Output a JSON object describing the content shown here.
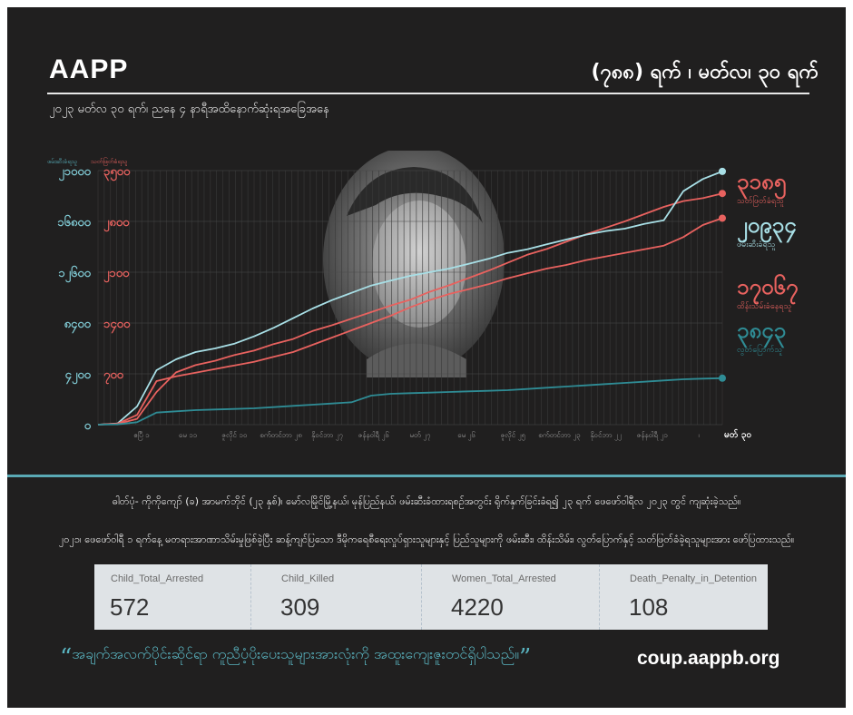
{
  "header": {
    "brand": "AAPP",
    "day_title": "(၇၈၈) ရက် ၊ မတ်လ၊ ၃၀ ရက်",
    "date_line": "၂၀၂၃ မတ်လ ၃၀ ရက်၊ ညနေ ၄ နာရီအထိနောက်ဆုံးရအခြေအနေ"
  },
  "chart_data": {
    "type": "line",
    "left_axis_title": "ဖမ်းဆီးခံရသူ",
    "right_axis_title": "သတ်ဖြတ်ခံရသူ",
    "left_ticks": [
      "၂၁၀၀၀",
      "၁၆၈၀၀",
      "၁၂၆၀၀",
      "၈၄၀၀",
      "၄၂၀၀",
      "၀"
    ],
    "right_ticks": [
      "၃၅၀၀",
      "၂၈၀၀",
      "၂၁၀၀",
      "၁၄၀၀",
      "၇၀၀"
    ],
    "left_ylim": [
      0,
      21000
    ],
    "right_ylim": [
      0,
      3500
    ],
    "x_ticks": [
      "ဧပြီ ၁",
      "မေ ၁၁",
      "ဇူလိုင် ၁၀",
      "စက်တင်ဘာ ၂၈",
      "နိုဝင်ဘာ ၂၇",
      "ဇန်နဝါရီ ၂၆",
      "မတ် ၂၇",
      "မေ ၂၆",
      "ဇူလိုင် ၂၅",
      "စက်တင်ဘာ ၂၃",
      "နိုဝင်ဘာ ၂၂",
      "ဇန်နဝါရီ ၂၁",
      "၊"
    ],
    "x_end_label": "မတ် ၃၀",
    "end_values": {
      "killed": {
        "value": "၃၁၈၅",
        "label": "သတ်ဖြတ်ခံရသူ",
        "color": "#e8625f"
      },
      "arrested": {
        "value": "၂၀၉၃၄",
        "label": "ဖမ်းဆီးခံရသူ",
        "color": "#a8dfe6"
      },
      "detained": {
        "value": "၁၇၀၆၇",
        "label": "ထိန်းသိမ်းခံနေရသူ",
        "color": "#e8625f"
      },
      "evaded": {
        "value": "၃၈၄၃",
        "label": "လွတ်ပြောက်သူ",
        "color": "#2f8c95"
      }
    },
    "series": [
      {
        "key": "killed",
        "axis": "right",
        "color": "#e8625f",
        "values": [
          0,
          10,
          80,
          450,
          720,
          820,
          880,
          960,
          1020,
          1110,
          1180,
          1290,
          1370,
          1460,
          1550,
          1640,
          1720,
          1830,
          1920,
          2020,
          2120,
          2230,
          2340,
          2420,
          2520,
          2620,
          2710,
          2800,
          2900,
          3000,
          3080,
          3120,
          3185
        ]
      },
      {
        "key": "arrested",
        "axis": "left",
        "color": "#a8dfe6",
        "values": [
          0,
          100,
          1500,
          4500,
          5400,
          6000,
          6300,
          6700,
          7300,
          8000,
          8800,
          9600,
          10300,
          10900,
          11500,
          11900,
          12300,
          12600,
          12900,
          13300,
          13700,
          14200,
          14500,
          14900,
          15300,
          15700,
          16000,
          16200,
          16600,
          16900,
          19300,
          20300,
          20934
        ]
      },
      {
        "key": "detained",
        "axis": "left",
        "color": "#e8625f",
        "values": [
          0,
          80,
          800,
          3600,
          4000,
          4300,
          4600,
          4900,
          5200,
          5600,
          6000,
          6600,
          7200,
          7800,
          8400,
          9000,
          9700,
          10300,
          10800,
          11200,
          11600,
          12100,
          12500,
          12900,
          13200,
          13600,
          13900,
          14200,
          14500,
          14800,
          15500,
          16500,
          17067
        ]
      },
      {
        "key": "evaded",
        "axis": "left",
        "color": "#2f8c95",
        "values": [
          0,
          20,
          200,
          1000,
          1100,
          1200,
          1250,
          1300,
          1350,
          1450,
          1550,
          1650,
          1750,
          1850,
          2400,
          2550,
          2600,
          2650,
          2700,
          2750,
          2800,
          2850,
          2950,
          3050,
          3150,
          3250,
          3350,
          3450,
          3550,
          3650,
          3750,
          3800,
          3843
        ]
      }
    ],
    "grid": true
  },
  "paragraphs": [
    "ဓါတ်ပုံ- ကိုကိုကျော် (ခ) အာမက်ဘိုင် (၂၃ နှစ်)၊ မော်လမြိုင်မြို့နယ်၊ မုန်ပြည်နယ်၊ ဖမ်းဆီးခံထားရစဉ်အတွင်း ရိုက်နှက်ခြင်းခံရ၍ ၂၃ ရက် ဖေဖော်ဝါရီလ ၂၀၂၃ တွင် ကျဆုံးခဲ့သည်။",
    "၂၀၂၁၊ ဖေဖော်ဝါရီ ၁ ရက်နေ့ မတရားအာဏာသိမ်းမှုဖြစ်ခဲ့ပြီး ဆန့်ကျင်ပြသော ဒီမိုကရေစီရေးလှုပ်ရှားသူများနှင့် ပြည်သူများကို ဖမ်းဆီး၊ ထိန်းသိမ်း၊ လွတ်ပြောက်နှင့် သတ်ဖြတ်ခံခဲ့ရသူများအား ဖော်ပြထားသည်။"
  ],
  "stats": [
    {
      "label": "Child_Total_Arrested",
      "value": "572",
      "color": "#fbdfd5"
    },
    {
      "label": "Child_Killed",
      "value": "309",
      "color": "#cfe0f8"
    },
    {
      "label": "Women_Total_Arrested",
      "value": "4220",
      "color": "#fbdfd5"
    },
    {
      "label": "Death_Penalty_in_Detention",
      "value": "108",
      "color": "#e5e7ea"
    }
  ],
  "footer": {
    "quote_open": "“",
    "quote": "အချက်အလက်ပိုင်းဆိုင်ရာ ကူညီပံ့ပိုးပေးသူများအားလုံးကို အထူးကျေးဇူးတင်ရှိပါသည်။",
    "quote_close": "”",
    "url": "coup.aappb.org"
  }
}
